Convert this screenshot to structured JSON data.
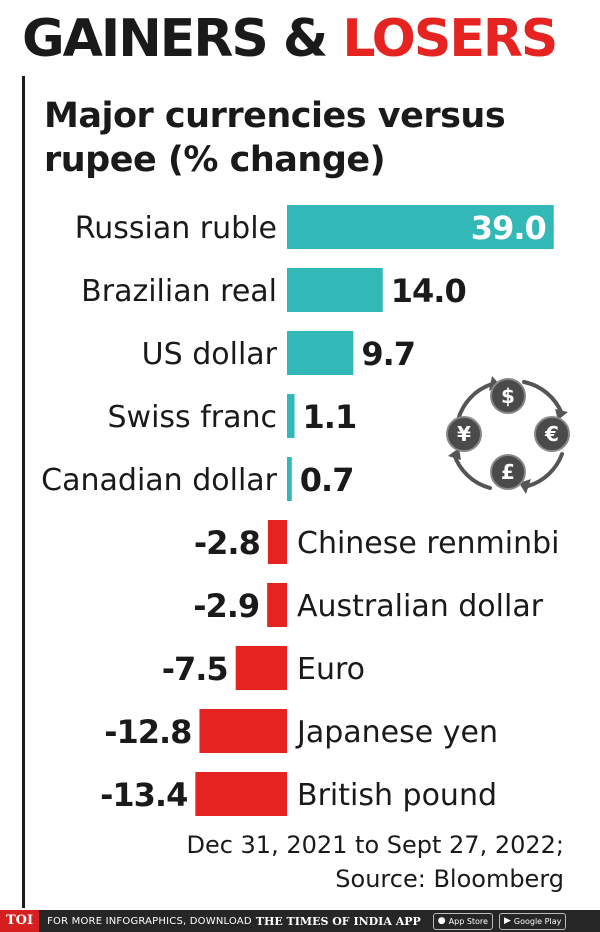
{
  "headline": {
    "part1": "GAINERS & ",
    "part2": "LOSERS"
  },
  "subtitle": "Major currencies versus rupee (% change)",
  "colors": {
    "gain": "#33b8b8",
    "loss": "#e52421",
    "text": "#1a1a1a"
  },
  "chart_data": {
    "type": "bar",
    "orientation": "horizontal",
    "title": "Major currencies versus rupee (% change)",
    "categories": [
      "Russian ruble",
      "Brazilian real",
      "US dollar",
      "Swiss franc",
      "Canadian dollar",
      "Chinese renminbi",
      "Australian dollar",
      "Euro",
      "Japanese yen",
      "British pound"
    ],
    "values": [
      39.0,
      14.0,
      9.7,
      1.1,
      0.7,
      -2.8,
      -2.9,
      -7.5,
      -12.8,
      -13.4
    ],
    "value_labels": [
      "39.0",
      "14.0",
      "9.7",
      "1.1",
      "0.7",
      "-2.8",
      "-2.9",
      "-7.5",
      "-12.8",
      "-13.4"
    ],
    "grid": false,
    "legend": "none"
  },
  "emblem": {
    "icon": "currency-exchange-icon",
    "symbols": [
      "$",
      "€",
      "£",
      "¥"
    ]
  },
  "source": {
    "line1": "Dec 31, 2021 to Sept 27, 2022;",
    "line2": "Source: Bloomberg"
  },
  "footer": {
    "logo": "TOI",
    "promo": "FOR MORE INFOGRAPHICS, DOWNLOAD",
    "brand": "THE TIMES OF INDIA APP",
    "app_store": "App Store",
    "google_play": "Google Play"
  }
}
